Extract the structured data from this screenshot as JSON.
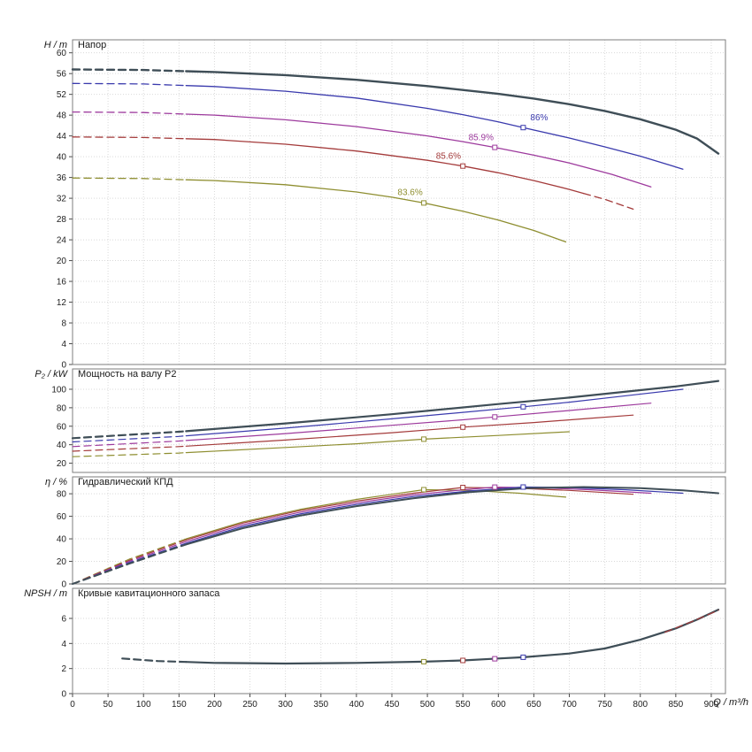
{
  "figure": {
    "xlabel": "Q / m³/h",
    "x_max": 920,
    "x_ticks": [
      0,
      50,
      100,
      150,
      200,
      250,
      300,
      350,
      400,
      450,
      500,
      550,
      600,
      650,
      700,
      750,
      800,
      850,
      900
    ],
    "bg_color": "#ffffff",
    "grid_color": "#d9d9d9",
    "border_color": "#7e7e7e",
    "text_color": "#222222"
  },
  "chart_data": [
    {
      "type": "line",
      "title": "Напор",
      "ylabel": "H / m",
      "ylim": [
        0,
        62.5
      ],
      "y_ticks": [
        0,
        4,
        8,
        12,
        16,
        20,
        24,
        28,
        32,
        36,
        40,
        44,
        48,
        52,
        56,
        60
      ],
      "grid": true,
      "series": [
        {
          "name": "head-trim-83-6",
          "color": "#8e8e30",
          "width": 1.3,
          "dash_until": 160,
          "points": [
            [
              0,
              35.9
            ],
            [
              100,
              35.8
            ],
            [
              200,
              35.4
            ],
            [
              300,
              34.6
            ],
            [
              400,
              33.2
            ],
            [
              450,
              32.2
            ],
            [
              495,
              31.1
            ],
            [
              550,
              29.5
            ],
            [
              600,
              27.8
            ],
            [
              650,
              25.8
            ],
            [
              695,
              23.6
            ]
          ],
          "markers": [
            [
              495,
              31.1
            ]
          ]
        },
        {
          "name": "head-trim-85-6",
          "color": "#a43b3b",
          "width": 1.3,
          "dash_until": 160,
          "dash_from": 720,
          "points": [
            [
              0,
              43.8
            ],
            [
              100,
              43.7
            ],
            [
              200,
              43.3
            ],
            [
              300,
              42.4
            ],
            [
              400,
              41.1
            ],
            [
              500,
              39.3
            ],
            [
              550,
              38.2
            ],
            [
              600,
              36.9
            ],
            [
              650,
              35.4
            ],
            [
              700,
              33.7
            ],
            [
              750,
              31.8
            ],
            [
              790,
              29.9
            ]
          ],
          "markers": [
            [
              550,
              38.2
            ]
          ]
        },
        {
          "name": "head-trim-85-9",
          "color": "#9d3a9d",
          "width": 1.3,
          "dash_until": 160,
          "points": [
            [
              0,
              48.6
            ],
            [
              100,
              48.5
            ],
            [
              200,
              48.0
            ],
            [
              300,
              47.1
            ],
            [
              400,
              45.8
            ],
            [
              500,
              44.0
            ],
            [
              550,
              42.9
            ],
            [
              595,
              41.8
            ],
            [
              650,
              40.3
            ],
            [
              700,
              38.8
            ],
            [
              760,
              36.6
            ],
            [
              815,
              34.2
            ]
          ],
          "markers": [
            [
              595,
              41.8
            ]
          ]
        },
        {
          "name": "head-trim-86",
          "color": "#3a3aad",
          "width": 1.3,
          "dash_until": 160,
          "points": [
            [
              0,
              54.1
            ],
            [
              100,
              54.0
            ],
            [
              200,
              53.5
            ],
            [
              300,
              52.6
            ],
            [
              400,
              51.3
            ],
            [
              500,
              49.3
            ],
            [
              550,
              48.1
            ],
            [
              600,
              46.7
            ],
            [
              635,
              45.6
            ],
            [
              700,
              43.6
            ],
            [
              750,
              41.9
            ],
            [
              800,
              40.1
            ],
            [
              860,
              37.6
            ]
          ],
          "markers": [
            [
              635,
              45.6
            ]
          ]
        },
        {
          "name": "head-trim-max",
          "color": "#3f4e57",
          "width": 2.4,
          "dash_until": 160,
          "points": [
            [
              0,
              56.8
            ],
            [
              100,
              56.7
            ],
            [
              200,
              56.3
            ],
            [
              300,
              55.7
            ],
            [
              400,
              54.8
            ],
            [
              500,
              53.6
            ],
            [
              600,
              52.1
            ],
            [
              650,
              51.2
            ],
            [
              700,
              50.1
            ],
            [
              750,
              48.8
            ],
            [
              800,
              47.2
            ],
            [
              850,
              45.2
            ],
            [
              880,
              43.5
            ],
            [
              910,
              40.6
            ]
          ]
        }
      ],
      "annotations": [
        {
          "text": "86%",
          "x": 645,
          "y": 47.0,
          "color": "#3a3aad"
        },
        {
          "text": "85.9%",
          "x": 558,
          "y": 43.2,
          "color": "#9d3a9d"
        },
        {
          "text": "85.6%",
          "x": 512,
          "y": 39.6,
          "color": "#a43b3b"
        },
        {
          "text": "83.6%",
          "x": 458,
          "y": 32.6,
          "color": "#8e8e30"
        }
      ]
    },
    {
      "type": "line",
      "title": "Мощность на валу P2",
      "ylabel": "P₂ / kW",
      "ylim": [
        10,
        122
      ],
      "y_ticks": [
        20,
        40,
        60,
        80,
        100
      ],
      "grid": true,
      "series": [
        {
          "name": "power-trim-83-6",
          "color": "#8e8e30",
          "width": 1.2,
          "dash_until": 160,
          "points": [
            [
              0,
              27
            ],
            [
              150,
              31
            ],
            [
              300,
              37
            ],
            [
              400,
              41
            ],
            [
              495,
              46
            ],
            [
              600,
              50
            ],
            [
              700,
              54
            ]
          ],
          "markers": [
            [
              495,
              46
            ]
          ]
        },
        {
          "name": "power-trim-85-6",
          "color": "#a43b3b",
          "width": 1.2,
          "dash_until": 160,
          "points": [
            [
              0,
              33
            ],
            [
              150,
              38
            ],
            [
              300,
              45
            ],
            [
              450,
              53
            ],
            [
              550,
              59
            ],
            [
              650,
              64
            ],
            [
              720,
              68
            ],
            [
              790,
              72
            ]
          ],
          "markers": [
            [
              550,
              59
            ]
          ]
        },
        {
          "name": "power-trim-85-9",
          "color": "#9d3a9d",
          "width": 1.2,
          "dash_until": 160,
          "points": [
            [
              0,
              38
            ],
            [
              150,
              44
            ],
            [
              300,
              52
            ],
            [
              450,
              61
            ],
            [
              550,
              67
            ],
            [
              595,
              70
            ],
            [
              700,
              77
            ],
            [
              815,
              85
            ]
          ],
          "markers": [
            [
              595,
              70
            ]
          ]
        },
        {
          "name": "power-trim-86",
          "color": "#3a3aad",
          "width": 1.2,
          "dash_until": 160,
          "points": [
            [
              0,
              43
            ],
            [
              150,
              49
            ],
            [
              300,
              58
            ],
            [
              450,
              68
            ],
            [
              550,
              75
            ],
            [
              635,
              81
            ],
            [
              700,
              86
            ],
            [
              780,
              93
            ],
            [
              860,
              100
            ]
          ],
          "markers": [
            [
              635,
              81
            ]
          ]
        },
        {
          "name": "power-trim-max",
          "color": "#3f4e57",
          "width": 2.2,
          "dash_until": 160,
          "points": [
            [
              0,
              47
            ],
            [
              150,
              54
            ],
            [
              300,
              63
            ],
            [
              450,
              73
            ],
            [
              600,
              84
            ],
            [
              700,
              91
            ],
            [
              800,
              99
            ],
            [
              850,
              103
            ],
            [
              910,
              109
            ]
          ]
        }
      ],
      "annotations": []
    },
    {
      "type": "line",
      "title": "Гидравлический КПД",
      "ylabel": "η / %",
      "ylim": [
        0,
        95
      ],
      "y_ticks": [
        0,
        20,
        40,
        60,
        80
      ],
      "grid": true,
      "series": [
        {
          "name": "eff-trim-83-6",
          "color": "#8e8e30",
          "width": 1.2,
          "dash_until": 160,
          "points": [
            [
              0,
              0
            ],
            [
              80,
              22
            ],
            [
              160,
              40
            ],
            [
              240,
              55
            ],
            [
              320,
              66
            ],
            [
              400,
              75
            ],
            [
              450,
              79.5
            ],
            [
              495,
              83.6
            ],
            [
              560,
              83
            ],
            [
              630,
              80.5
            ],
            [
              695,
              77
            ]
          ],
          "markers": [
            [
              495,
              83.6
            ]
          ]
        },
        {
          "name": "eff-trim-85-6",
          "color": "#a43b3b",
          "width": 1.2,
          "dash_until": 160,
          "points": [
            [
              0,
              0
            ],
            [
              80,
              21
            ],
            [
              160,
              39
            ],
            [
              240,
              54
            ],
            [
              320,
              65
            ],
            [
              400,
              73.5
            ],
            [
              480,
              80.5
            ],
            [
              550,
              85.6
            ],
            [
              620,
              85
            ],
            [
              700,
              83
            ],
            [
              790,
              79.5
            ]
          ],
          "markers": [
            [
              550,
              85.6
            ]
          ]
        },
        {
          "name": "eff-trim-85-9",
          "color": "#9d3a9d",
          "width": 1.2,
          "dash_until": 160,
          "points": [
            [
              0,
              0
            ],
            [
              80,
              20
            ],
            [
              160,
              37.5
            ],
            [
              240,
              52.5
            ],
            [
              320,
              63.5
            ],
            [
              400,
              72
            ],
            [
              480,
              79
            ],
            [
              550,
              83.5
            ],
            [
              595,
              85.9
            ],
            [
              660,
              85.3
            ],
            [
              730,
              83.5
            ],
            [
              815,
              80.5
            ]
          ],
          "markers": [
            [
              595,
              85.9
            ]
          ]
        },
        {
          "name": "eff-trim-86",
          "color": "#3a3aad",
          "width": 1.2,
          "dash_until": 160,
          "points": [
            [
              0,
              0
            ],
            [
              80,
              19
            ],
            [
              160,
              36
            ],
            [
              240,
              51
            ],
            [
              320,
              62
            ],
            [
              400,
              70.5
            ],
            [
              480,
              77.5
            ],
            [
              560,
              82.5
            ],
            [
              635,
              86
            ],
            [
              700,
              85.5
            ],
            [
              780,
              83.5
            ],
            [
              860,
              80.5
            ]
          ],
          "markers": [
            [
              635,
              86
            ]
          ]
        },
        {
          "name": "eff-trim-max",
          "color": "#3f4e57",
          "width": 2.0,
          "dash_until": 160,
          "points": [
            [
              0,
              0
            ],
            [
              80,
              18
            ],
            [
              160,
              35
            ],
            [
              240,
              49.5
            ],
            [
              320,
              60.5
            ],
            [
              400,
              69
            ],
            [
              480,
              76
            ],
            [
              560,
              81.5
            ],
            [
              640,
              85
            ],
            [
              720,
              86
            ],
            [
              800,
              85
            ],
            [
              860,
              83
            ],
            [
              910,
              80.5
            ]
          ]
        }
      ],
      "annotations": []
    },
    {
      "type": "line",
      "title": "Кривые кавитационного запаса",
      "ylabel": "NPSH / m",
      "ylim": [
        0,
        8.4
      ],
      "y_ticks": [
        0,
        2,
        4,
        6
      ],
      "grid": true,
      "series": [
        {
          "name": "npsh-main",
          "color": "#3f4e57",
          "width": 2.2,
          "dash_until": 160,
          "points": [
            [
              70,
              2.8
            ],
            [
              120,
              2.6
            ],
            [
              200,
              2.45
            ],
            [
              300,
              2.4
            ],
            [
              400,
              2.45
            ],
            [
              495,
              2.55
            ],
            [
              550,
              2.65
            ],
            [
              600,
              2.8
            ],
            [
              635,
              2.9
            ],
            [
              700,
              3.2
            ],
            [
              750,
              3.6
            ],
            [
              800,
              4.3
            ],
            [
              850,
              5.2
            ],
            [
              880,
              5.9
            ],
            [
              910,
              6.7
            ]
          ]
        },
        {
          "name": "npsh-tail-dashed",
          "color": "#a43b3b",
          "width": 1.2,
          "dashed": true,
          "points": [
            [
              835,
              4.9
            ],
            [
              875,
              5.8
            ],
            [
              910,
              6.65
            ]
          ]
        }
      ],
      "markers": [
        {
          "x": 495,
          "y": 2.55,
          "color": "#8e8e30"
        },
        {
          "x": 550,
          "y": 2.65,
          "color": "#a43b3b"
        },
        {
          "x": 595,
          "y": 2.78,
          "color": "#9d3a9d"
        },
        {
          "x": 635,
          "y": 2.9,
          "color": "#3a3aad"
        }
      ],
      "annotations": []
    }
  ]
}
